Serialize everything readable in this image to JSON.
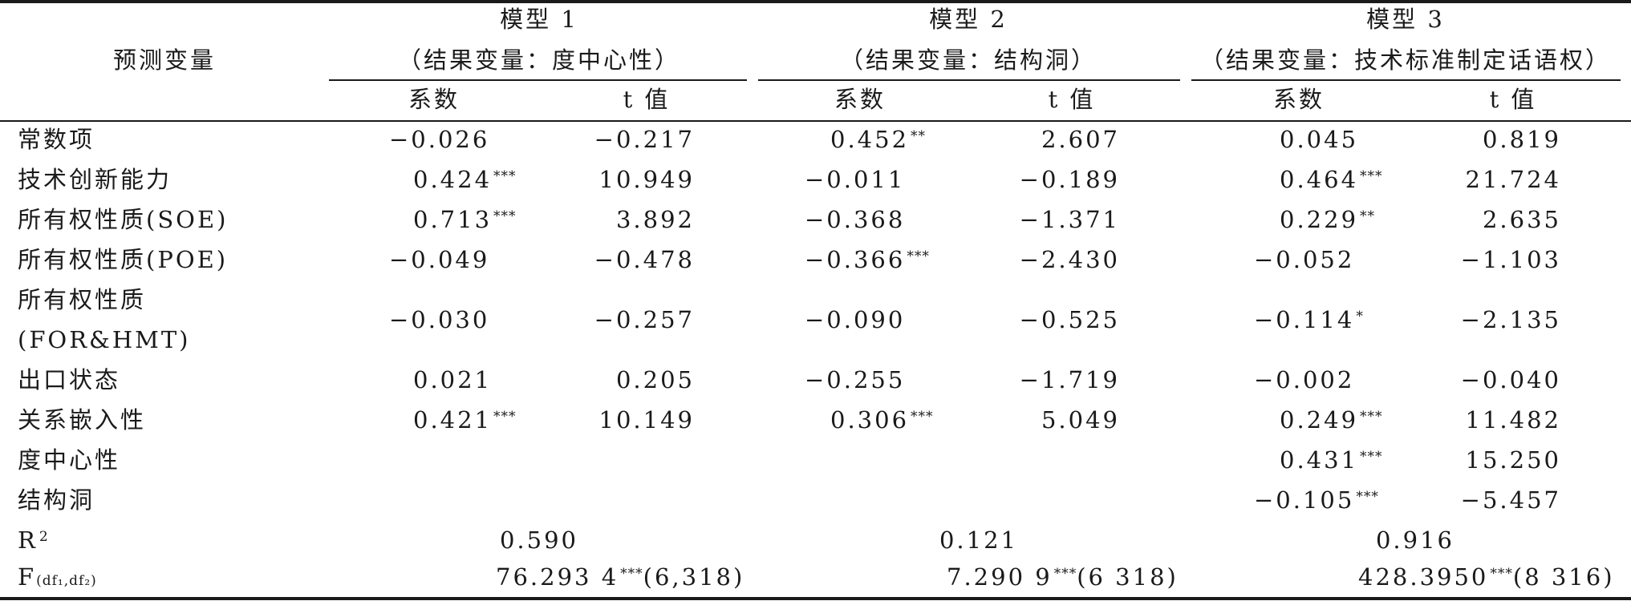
{
  "headers": {
    "predictor": "预测变量",
    "model1": {
      "title": "模型 1",
      "dv": "（结果变量：度中心性）"
    },
    "model2": {
      "title": "模型 2",
      "dv": "（结果变量：结构洞）"
    },
    "model3": {
      "title": "模型 3",
      "dv": "（结果变量：技术标准制定话语权）"
    },
    "coef": "系数",
    "t": "t 值"
  },
  "rows": [
    {
      "label": "常数项",
      "m1_coef": "−0.026",
      "m1_sig": "",
      "m1_t": "−0.217",
      "m2_coef": "0.452",
      "m2_sig": "**",
      "m2_t": "2.607",
      "m3_coef": "0.045",
      "m3_sig": "",
      "m3_t": "0.819"
    },
    {
      "label": "技术创新能力",
      "m1_coef": "0.424",
      "m1_sig": "***",
      "m1_t": "10.949",
      "m2_coef": "−0.011",
      "m2_sig": "",
      "m2_t": "−0.189",
      "m3_coef": "0.464",
      "m3_sig": "***",
      "m3_t": "21.724"
    },
    {
      "label": "所有权性质(SOE)",
      "m1_coef": "0.713",
      "m1_sig": "***",
      "m1_t": "3.892",
      "m2_coef": "−0.368",
      "m2_sig": "",
      "m2_t": "−1.371",
      "m3_coef": "0.229",
      "m3_sig": "**",
      "m3_t": "2.635"
    },
    {
      "label": "所有权性质(POE)",
      "m1_coef": "−0.049",
      "m1_sig": "",
      "m1_t": "−0.478",
      "m2_coef": "−0.366",
      "m2_sig": "***",
      "m2_t": "−2.430",
      "m3_coef": "−0.052",
      "m3_sig": "",
      "m3_t": "−1.103"
    },
    {
      "label": "所有权性质",
      "label2": "(FOR&HMT)",
      "m1_coef": "−0.030",
      "m1_sig": "",
      "m1_t": "−0.257",
      "m2_coef": "−0.090",
      "m2_sig": "",
      "m2_t": "−0.525",
      "m3_coef": "−0.114",
      "m3_sig": "*",
      "m3_t": "−2.135"
    },
    {
      "label": "出口状态",
      "m1_coef": "0.021",
      "m1_sig": "",
      "m1_t": "0.205",
      "m2_coef": "−0.255",
      "m2_sig": "",
      "m2_t": "−1.719",
      "m3_coef": "−0.002",
      "m3_sig": "",
      "m3_t": "−0.040"
    },
    {
      "label": "关系嵌入性",
      "m1_coef": "0.421",
      "m1_sig": "***",
      "m1_t": "10.149",
      "m2_coef": "0.306",
      "m2_sig": "***",
      "m2_t": "5.049",
      "m3_coef": "0.249",
      "m3_sig": "***",
      "m3_t": "11.482"
    },
    {
      "label": "度中心性",
      "m1_coef": "",
      "m1_sig": "",
      "m1_t": "",
      "m2_coef": "",
      "m2_sig": "",
      "m2_t": "",
      "m3_coef": "0.431",
      "m3_sig": "***",
      "m3_t": "15.250"
    },
    {
      "label": "结构洞",
      "m1_coef": "",
      "m1_sig": "",
      "m1_t": "",
      "m2_coef": "",
      "m2_sig": "",
      "m2_t": "",
      "m3_coef": "−0.105",
      "m3_sig": "***",
      "m3_t": "−5.457"
    }
  ],
  "r2": {
    "label": "R",
    "sup": "2",
    "m1": "0.590",
    "m2": "0.121",
    "m3": "0.916"
  },
  "f": {
    "label": "F",
    "sub": "(df₁,df₂)",
    "m1": "76.293 4",
    "m1_sig": "***",
    "m1_df": "(6,318)",
    "m2": "7.290 9",
    "m2_sig": "***",
    "m2_df": "(6 318)",
    "m3": "428.3950",
    "m3_sig": "***",
    "m3_df": "(8 316)"
  }
}
